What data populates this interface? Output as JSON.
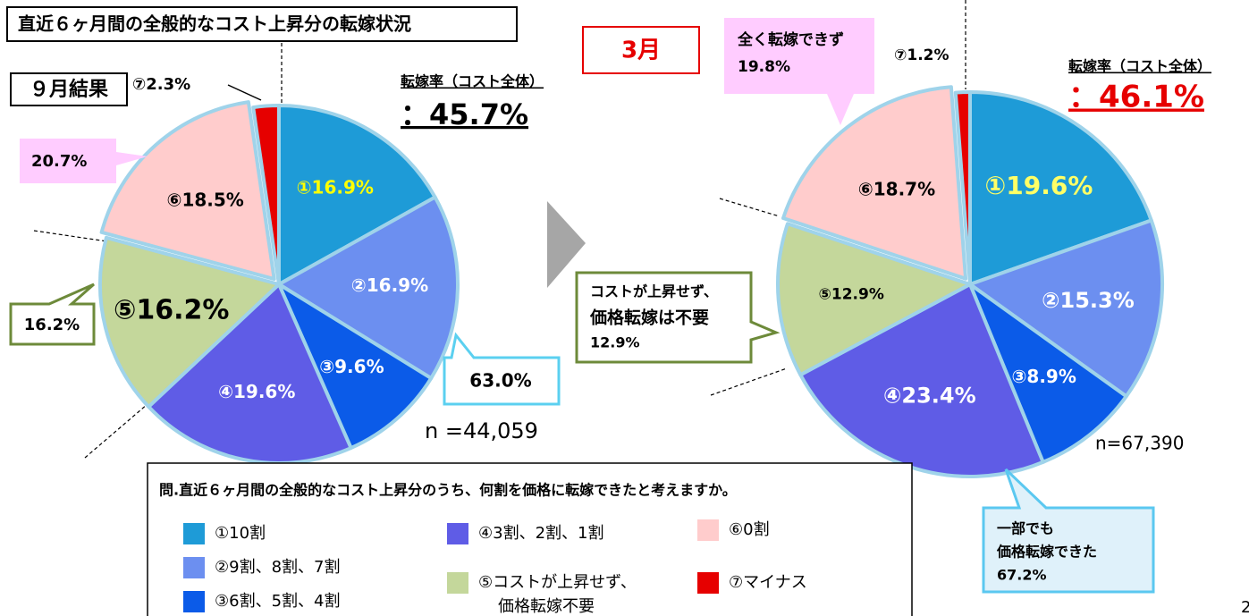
{
  "title": "直近６ヶ月間の全般的なコスト上昇分の転嫁状況",
  "chart_data": [
    {
      "type": "pie",
      "label": "９月結果",
      "rate_title": "転嫁率（コスト全体）",
      "rate": "：45.7%",
      "n": "n =44,059",
      "values": [
        16.9,
        16.9,
        9.6,
        19.6,
        16.2,
        18.5,
        2.3
      ],
      "value_labels": [
        "①16.9%",
        "②16.9%",
        "③9.6%",
        "④19.6%",
        "⑤16.2%",
        "⑥18.5%",
        "⑦2.3%"
      ],
      "colors": [
        "#1e9bd7",
        "#6c8ff0",
        "#0b5be8",
        "#5f5ce6",
        "#c4d79b",
        "#ffcccc",
        "#e60000"
      ],
      "label_colors": [
        "#ffff00",
        "#ffffff",
        "#ffffff",
        "#ffffff",
        "#000000",
        "#000000",
        "#000000"
      ]
    },
    {
      "type": "pie",
      "label": "3月",
      "rate_title": "転嫁率（コスト全体）",
      "rate": "：46.1%",
      "n": "n=67,390",
      "values": [
        19.6,
        15.3,
        8.9,
        23.4,
        12.9,
        18.7,
        1.2
      ],
      "value_labels": [
        "①19.6%",
        "②15.3%",
        "③8.9%",
        "④23.4%",
        "⑤12.9%",
        "⑥18.7%",
        "⑦1.2%"
      ],
      "colors": [
        "#1e9bd7",
        "#6c8ff0",
        "#0b5be8",
        "#5f5ce6",
        "#c4d79b",
        "#ffcccc",
        "#e60000"
      ],
      "label_colors": [
        "#ffff66",
        "#ffffff",
        "#ffffff",
        "#ffffff",
        "#000000",
        "#000000",
        "#000000"
      ]
    }
  ],
  "callouts": {
    "left_zero": "20.7%",
    "left_no_rise": "16.2%",
    "left_partial": "63.0%",
    "right_zero": [
      "全く転嫁できず",
      "19.8%"
    ],
    "right_no_rise": [
      "コストが上昇せず、",
      "価格転嫁は不要",
      "12.9%"
    ],
    "right_partial": [
      "一部でも",
      "価格転嫁できた",
      "67.2%"
    ]
  },
  "legend": {
    "question": "問.直近６ヶ月間の全般的なコスト上昇分のうち、何割を価格に転嫁できたと考えますか。",
    "items": [
      [
        "①10割"
      ],
      [
        "②9割、8割、7割"
      ],
      [
        "③6割、5割、4割"
      ],
      [
        "④3割、2割、1割"
      ],
      [
        "⑤コストが上昇せず、",
        "価格転嫁不要"
      ],
      [
        "⑥0割"
      ],
      [
        "⑦マイナス"
      ]
    ]
  },
  "page_number": "2"
}
